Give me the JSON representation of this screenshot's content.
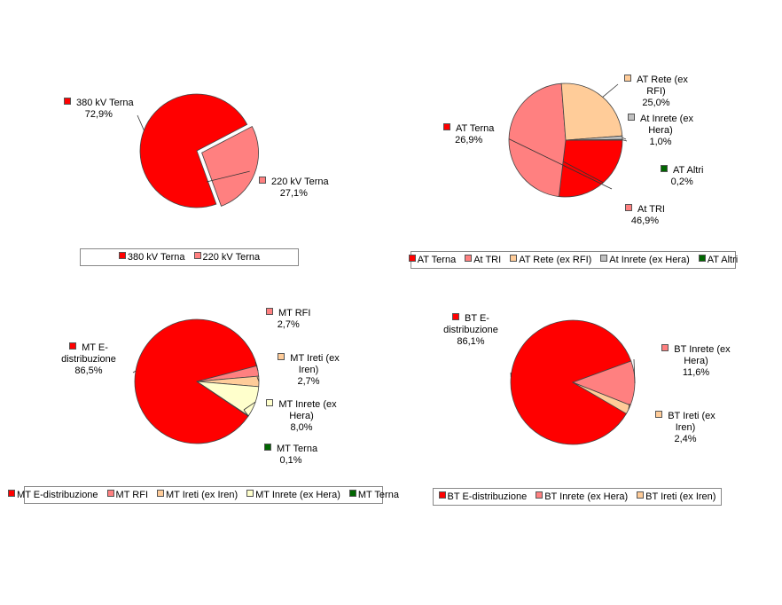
{
  "chart_data": [
    {
      "type": "pie",
      "series": [
        {
          "name": "380 kV Terna",
          "value": 72.9,
          "label": "72,9%",
          "color": "#FF0000"
        },
        {
          "name": "220 kV Terna",
          "value": 27.1,
          "label": "27,1%",
          "color": "#FF8080"
        }
      ],
      "legend": "bottom"
    },
    {
      "type": "pie",
      "series": [
        {
          "name": "AT Terna",
          "value": 26.9,
          "label": "26,9%",
          "color": "#FF0000"
        },
        {
          "name": "At TRI",
          "value": 46.9,
          "label": "46,9%",
          "color": "#FF8080"
        },
        {
          "name": "AT Rete (ex RFI)",
          "value": 25.0,
          "label": "25,0%",
          "color": "#FFCC99"
        },
        {
          "name": "At Inrete (ex Hera)",
          "value": 1.0,
          "label": "1,0%",
          "color": "#C0C0C0"
        },
        {
          "name": "AT Altri",
          "value": 0.2,
          "label": "0,2%",
          "color": "#006600"
        }
      ],
      "legend": "bottom"
    },
    {
      "type": "pie",
      "series": [
        {
          "name": "MT E-distribuzione",
          "value": 86.5,
          "label": "86,5%",
          "color": "#FF0000"
        },
        {
          "name": "MT RFI",
          "value": 2.7,
          "label": "2,7%",
          "color": "#FF8080"
        },
        {
          "name": "MT Ireti (ex Iren)",
          "value": 2.7,
          "label": "2,7%",
          "color": "#FFCC99"
        },
        {
          "name": "MT Inrete (ex Hera)",
          "value": 8.0,
          "label": "8,0%",
          "color": "#FFFFCC"
        },
        {
          "name": "MT Terna",
          "value": 0.1,
          "label": "0,1%",
          "color": "#006600"
        }
      ],
      "legend": "bottom"
    },
    {
      "type": "pie",
      "series": [
        {
          "name": "BT E-distribuzione",
          "value": 86.1,
          "label": "86,1%",
          "color": "#FF0000"
        },
        {
          "name": "BT Inrete (ex Hera)",
          "value": 11.6,
          "label": "11,6%",
          "color": "#FF8080"
        },
        {
          "name": "BT Ireti (ex Iren)",
          "value": 2.4,
          "label": "2,4%",
          "color": "#FFCC99"
        }
      ],
      "legend": "bottom"
    }
  ]
}
